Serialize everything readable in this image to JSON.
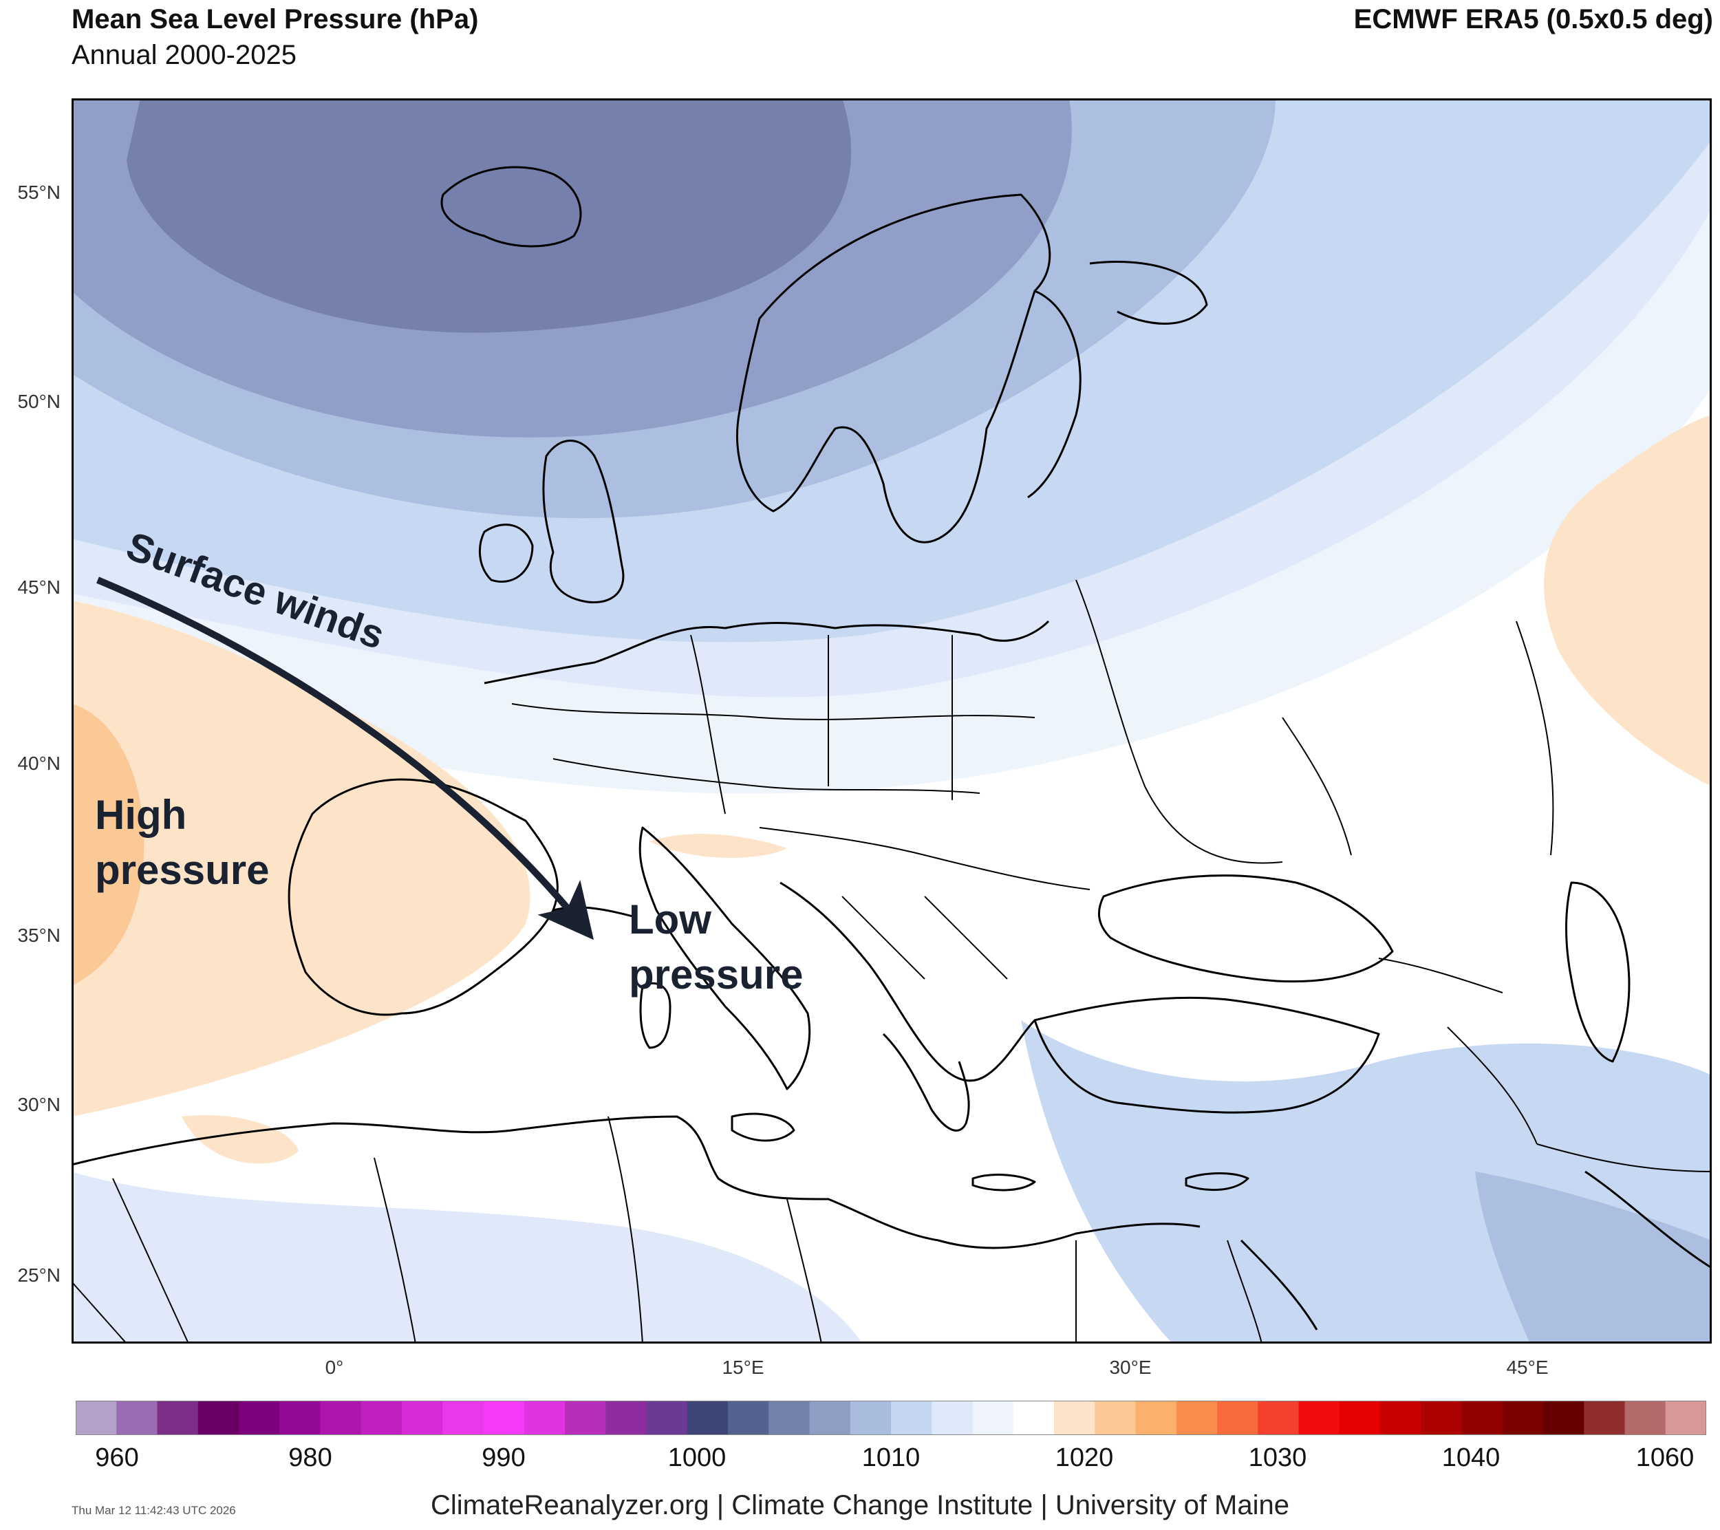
{
  "header": {
    "title": "Mean Sea Level Pressure (hPa)",
    "subtitle": "Annual 2000-2025",
    "source": "ECMWF ERA5 (0.5x0.5 deg)"
  },
  "axes": {
    "lat_labels": [
      "55°N",
      "50°N",
      "45°N",
      "40°N",
      "35°N",
      "30°N",
      "25°N"
    ],
    "lon_labels": [
      "0°",
      "15°E",
      "30°E",
      "45°E"
    ]
  },
  "annotations": {
    "winds": "Surface winds",
    "high_line1": "High",
    "high_line2": "pressure",
    "low_line1": "Low",
    "low_line2": "pressure"
  },
  "colorbar": {
    "ticks": [
      "960",
      "980",
      "990",
      "1000",
      "1010",
      "1020",
      "1030",
      "1040",
      "1060"
    ],
    "colors": [
      "#b3a1cc",
      "#9b6bb3",
      "#7c2f88",
      "#6a0066",
      "#7d007d",
      "#950a95",
      "#ad15ad",
      "#c11fc1",
      "#d82bd8",
      "#ea37ea",
      "#f73af7",
      "#df34df",
      "#b92eb9",
      "#8f2c9f",
      "#6a3b94",
      "#3d4677",
      "#55628f",
      "#7381ad",
      "#8f9dc5",
      "#aabcdd",
      "#c4d6f0",
      "#dde8f8",
      "#eef3fc",
      "#ffffff",
      "#fde4c8",
      "#fcc893",
      "#fbb06b",
      "#fa8c4d",
      "#f86b3e",
      "#f6402e",
      "#f20d0d",
      "#e40000",
      "#c80000",
      "#ad0000",
      "#920000",
      "#7a0000",
      "#660000",
      "#8e2e2e",
      "#b46a6a",
      "#d99898"
    ]
  },
  "palette": {
    "deep_low": "#7680ad",
    "low2": "#909ec8",
    "low3": "#acbfe0",
    "low4": "#c7d8f2",
    "low5": "#dfe9f9",
    "near_mean": "#eef4fc",
    "high1": "#fde4c8",
    "high2": "#fbc996"
  },
  "footer": {
    "stamp": "Thu Mar 12 11:42:43 UTC 2026",
    "credit": "ClimateReanalyzer.org | Climate Change Institute | University of Maine"
  }
}
